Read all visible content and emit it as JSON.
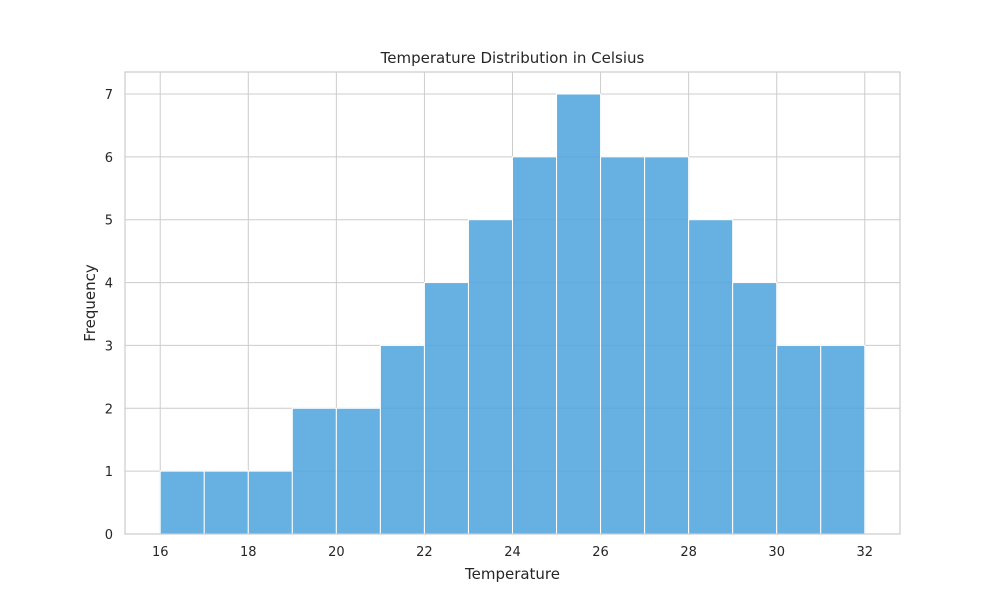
{
  "chart_data": {
    "type": "bar",
    "title": "Temperature Distribution in Celsius",
    "xlabel": "Temperature",
    "ylabel": "Frequency",
    "bin_edges": [
      16,
      17,
      18,
      19,
      20,
      21,
      22,
      23,
      24,
      25,
      26,
      27,
      28,
      29,
      30,
      31,
      32
    ],
    "values": [
      1,
      1,
      1,
      2,
      2,
      3,
      4,
      5,
      6,
      7,
      6,
      6,
      5,
      4,
      3,
      3
    ],
    "xlim": [
      15.2,
      32.8
    ],
    "ylim": [
      0,
      7.35
    ],
    "xticks": [
      16,
      18,
      20,
      22,
      24,
      26,
      28,
      30,
      32
    ],
    "yticks": [
      0,
      1,
      2,
      3,
      4,
      5,
      6,
      7
    ],
    "grid": true,
    "bar_color": "#4ca3dd"
  }
}
